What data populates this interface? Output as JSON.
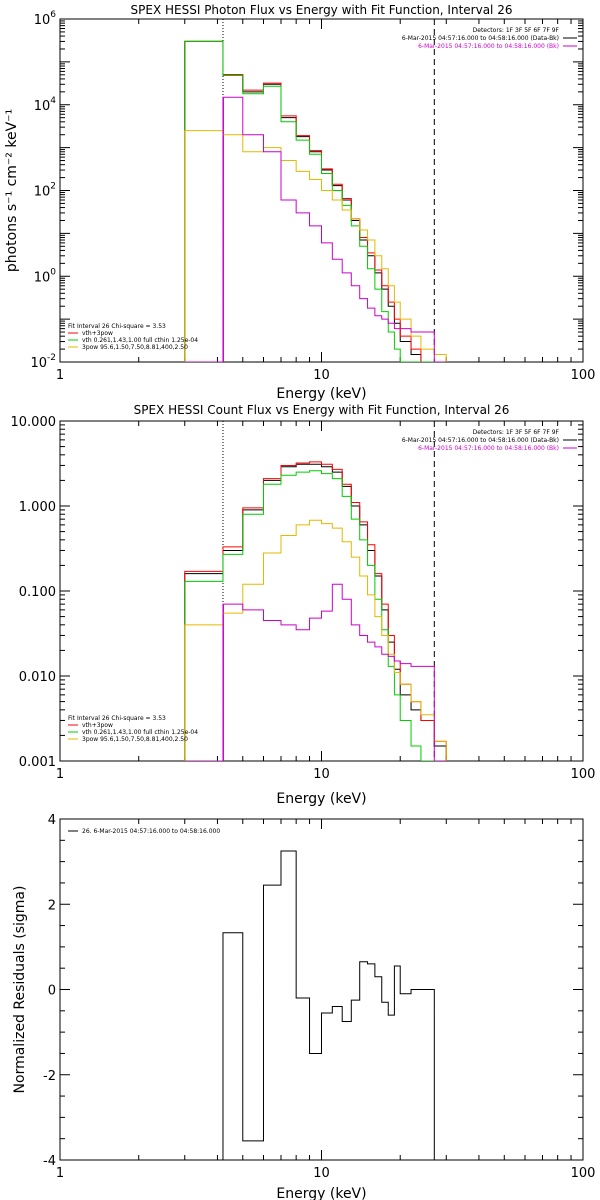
{
  "chart_data": [
    {
      "type": "line",
      "title": "SPEX HESSI Photon Flux vs Energy with Fit Function, Interval 26",
      "xlabel": "Energy (keV)",
      "ylabel": "photons s⁻¹ cm⁻² keV⁻¹",
      "xscale": "log",
      "yscale": "log",
      "xlim": [
        1,
        100
      ],
      "ylim": [
        0.01,
        1000000
      ],
      "x_ticks": [
        "1",
        "10",
        "100"
      ],
      "y_ticks": [
        {
          "v": 0.01,
          "base": "10",
          "exp": "-2"
        },
        {
          "v": 1,
          "base": "10",
          "exp": "0"
        },
        {
          "v": 100,
          "base": "10",
          "exp": "2"
        },
        {
          "v": 10000,
          "base": "10",
          "exp": "4"
        },
        {
          "v": 1000000,
          "base": "10",
          "exp": "6"
        }
      ],
      "vlines": [
        {
          "x": 4.2,
          "style": "dotted",
          "color": "#000000"
        },
        {
          "x": 4.2,
          "style": "solid",
          "color": "#cc00cc"
        },
        {
          "x": 27,
          "style": "dashed",
          "color": "#000000"
        }
      ],
      "header_lines": [
        {
          "text": "Detectors: 1F 3F 5F 6F 7F 9F",
          "color": "#000000"
        },
        {
          "text": "6-Mar-2015 04:57:16.000 to 04:58:16.000 (Data-Bk)",
          "color": "#000000"
        },
        {
          "text": "6-Mar-2015 04:57:16.000 to 04:58:16.000 (Bk)",
          "color": "#cc00cc"
        }
      ],
      "legend": {
        "position": "bottom-left",
        "header": "Fit Interval 26   Chi-square = 3.53",
        "entries": [
          {
            "text": "vth+3pow",
            "color": "#ff0000"
          },
          {
            "text": "vth 0.261,1.43,1.00  full cthin 1.25e-04",
            "color": "#00cc00"
          },
          {
            "text": "3pow 95.6,1.50,7.50,8.81,400,2.50",
            "color": "#e6b800"
          }
        ]
      },
      "edges": [
        3,
        4.2,
        5,
        6,
        7,
        8,
        9,
        10,
        11,
        12,
        13,
        14,
        15,
        16,
        17,
        18,
        19,
        20,
        22,
        24,
        27,
        30
      ],
      "series": [
        {
          "color": "#000000",
          "values": [
            300000,
            50000,
            20000,
            30000,
            5000,
            1800,
            800,
            300,
            130,
            60,
            20,
            7,
            3,
            1.2,
            0.5,
            0.2,
            0.08,
            0.03,
            0.015,
            0.009,
            0.01
          ]
        },
        {
          "color": "#ff0000",
          "values": [
            300000,
            50000,
            22000,
            32000,
            5500,
            1900,
            850,
            320,
            140,
            65,
            22,
            8,
            3.5,
            1.4,
            0.6,
            0.25,
            0.1,
            0.04,
            0.02,
            0.01,
            0.01
          ]
        },
        {
          "color": "#00cc00",
          "values": [
            300000,
            48000,
            18000,
            27000,
            4000,
            1500,
            700,
            250,
            100,
            45,
            15,
            5,
            1.5,
            0.5,
            0.15,
            0.05,
            0.02,
            0.01,
            0.01,
            0.01,
            0.01
          ]
        },
        {
          "color": "#e6b800",
          "values": [
            2500,
            2000,
            800,
            1000,
            500,
            280,
            180,
            100,
            60,
            35,
            22,
            12,
            7,
            3,
            1.5,
            0.6,
            0.25,
            0.1,
            0.04,
            0.02,
            0.015
          ]
        },
        {
          "color": "#cc00cc",
          "values": [
            0.01,
            15000,
            2000,
            800,
            60,
            30,
            15,
            6,
            2.5,
            1.2,
            0.6,
            0.3,
            0.18,
            0.12,
            0.1,
            0.08,
            0.06,
            0.06,
            0.05,
            0.05,
            0.01
          ]
        }
      ]
    },
    {
      "type": "line",
      "title": "SPEX HESSI Count Flux vs Energy with Fit Function, Interval 26",
      "xlabel": "Energy (keV)",
      "ylabel": "",
      "xscale": "log",
      "yscale": "log",
      "xlim": [
        1,
        100
      ],
      "ylim": [
        0.001,
        10
      ],
      "x_ticks": [
        "1",
        "10",
        "100"
      ],
      "y_ticks": [
        {
          "v": 0.001,
          "text": "0.001"
        },
        {
          "v": 0.01,
          "text": "0.010"
        },
        {
          "v": 0.1,
          "text": "0.100"
        },
        {
          "v": 1,
          "text": "1.000"
        },
        {
          "v": 10,
          "text": "10.000"
        }
      ],
      "vlines": [
        {
          "x": 4.2,
          "style": "dotted",
          "color": "#000000"
        },
        {
          "x": 4.2,
          "style": "solid",
          "color": "#cc00cc"
        },
        {
          "x": 27,
          "style": "dashed",
          "color": "#000000"
        }
      ],
      "header_lines": [
        {
          "text": "Detectors: 1F 3F 5F 6F 7F 9F",
          "color": "#000000"
        },
        {
          "text": "6-Mar-2015 04:57:16.000 to 04:58:16.000 (Data-Bk)",
          "color": "#000000"
        },
        {
          "text": "6-Mar-2015 04:57:16.000 to 04:58:16.000 (Bk)",
          "color": "#cc00cc"
        }
      ],
      "legend": {
        "position": "bottom-left",
        "header": "Fit Interval 26   Chi-square = 3.53",
        "entries": [
          {
            "text": "vth+3pow",
            "color": "#ff0000"
          },
          {
            "text": "vth 0.261,1.43,1.00  full cthin 1.25e-04",
            "color": "#00cc00"
          },
          {
            "text": "3pow 95.6,1.50,7.50,8.81,400,2.50",
            "color": "#e6b800"
          }
        ]
      },
      "edges": [
        3,
        4.2,
        5,
        6,
        7,
        8,
        9,
        10,
        11,
        12,
        13,
        14,
        15,
        16,
        17,
        18,
        19,
        20,
        22,
        24,
        27,
        30
      ],
      "series": [
        {
          "color": "#000000",
          "values": [
            0.16,
            0.3,
            0.9,
            2,
            2.9,
            3.1,
            3.1,
            2.9,
            2.5,
            1.7,
            1.0,
            0.6,
            0.3,
            0.15,
            0.06,
            0.025,
            0.012,
            0.006,
            0.004,
            0.003,
            0.0015
          ]
        },
        {
          "color": "#ff0000",
          "values": [
            0.17,
            0.33,
            0.95,
            2.1,
            3.0,
            3.2,
            3.3,
            3.1,
            2.7,
            1.8,
            1.1,
            0.65,
            0.35,
            0.16,
            0.07,
            0.03,
            0.015,
            0.008,
            0.005,
            0.003,
            0.0017
          ]
        },
        {
          "color": "#00cc00",
          "values": [
            0.13,
            0.27,
            0.8,
            1.8,
            2.3,
            2.5,
            2.6,
            2.4,
            2.1,
            1.3,
            0.7,
            0.4,
            0.2,
            0.08,
            0.035,
            0.013,
            0.006,
            0.003,
            0.0015,
            0.001,
            0.001
          ]
        },
        {
          "color": "#e6b800",
          "values": [
            0.04,
            0.055,
            0.12,
            0.28,
            0.45,
            0.6,
            0.68,
            0.62,
            0.55,
            0.38,
            0.25,
            0.15,
            0.09,
            0.05,
            0.03,
            0.018,
            0.011,
            0.008,
            0.005,
            0.0035,
            0.0017
          ]
        },
        {
          "color": "#cc00cc",
          "values": [
            0.001,
            0.07,
            0.06,
            0.045,
            0.04,
            0.035,
            0.048,
            0.058,
            0.12,
            0.08,
            0.04,
            0.03,
            0.025,
            0.022,
            0.018,
            0.017,
            0.015,
            0.014,
            0.013,
            0.013,
            0.001
          ]
        }
      ]
    },
    {
      "type": "line",
      "title": "",
      "xlabel": "Energy (keV)",
      "ylabel": "Normalized Residuals (sigma)",
      "xscale": "log",
      "yscale": "linear",
      "xlim": [
        1,
        100
      ],
      "ylim": [
        -4,
        4
      ],
      "x_ticks": [
        "1",
        "10",
        "100"
      ],
      "y_ticks": [
        {
          "v": -4,
          "text": "-4"
        },
        {
          "v": -2,
          "text": "-2"
        },
        {
          "v": 0,
          "text": "0"
        },
        {
          "v": 2,
          "text": "2"
        },
        {
          "v": 4,
          "text": "4"
        }
      ],
      "legend": {
        "position": "top-left",
        "entries": [
          {
            "text": "26.  6-Mar-2015 04:57:16.000 to 04:58:16.000",
            "color": "#000000"
          }
        ]
      },
      "edges": [
        4.2,
        5,
        6,
        7,
        8,
        9,
        10,
        11,
        12,
        13,
        14,
        15,
        16,
        17,
        18,
        19,
        20,
        22,
        24,
        27
      ],
      "series": [
        {
          "color": "#000000",
          "values": [
            1.33,
            -3.55,
            2.45,
            3.25,
            -0.2,
            -1.5,
            -0.55,
            -0.4,
            -0.75,
            -0.25,
            0.65,
            0.6,
            0.3,
            -0.3,
            -0.6,
            0.55,
            -0.1,
            0.0,
            0.0
          ]
        }
      ]
    }
  ]
}
